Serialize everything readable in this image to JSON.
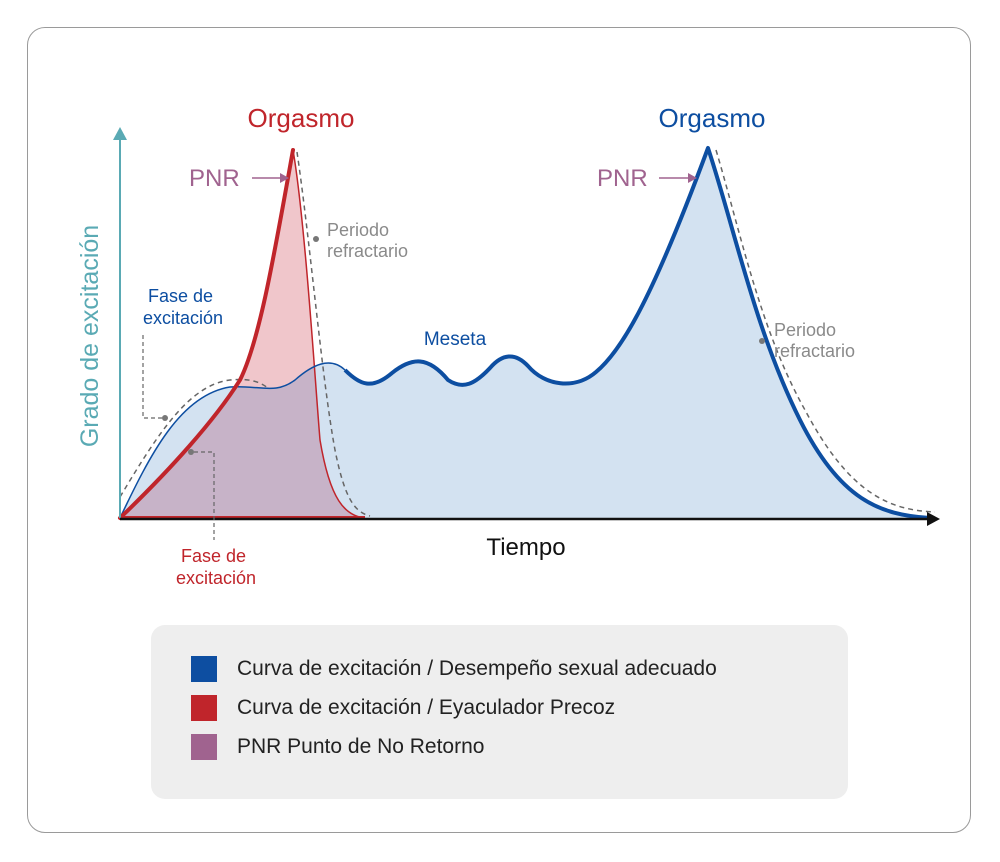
{
  "colors": {
    "teal": "#5aaab4",
    "blue": "#0d4ea1",
    "red": "#c0252b",
    "purple": "#a0638f",
    "gray": "#8a8a8a",
    "blue_fill": "#d3e2f1",
    "red_fill": "#f0c6cb",
    "overlap_fill": "#c7b3c8"
  },
  "axes": {
    "y_label": "Grado de excitación",
    "x_label": "Tiempo"
  },
  "annotations": {
    "orgasm_left": "Orgasmo",
    "orgasm_right": "Orgasmo",
    "pnr_left": "PNR",
    "pnr_right": "PNR",
    "refractory_left": [
      "Periodo",
      "refractario"
    ],
    "refractory_right": [
      "Periodo",
      "refractario"
    ],
    "excitation_blue": [
      "Fase de",
      "excitación"
    ],
    "plateau": "Meseta",
    "excitation_red": [
      "Fase de",
      "excitación"
    ]
  },
  "legend": [
    {
      "label": "Curva de excitación / Desempeño sexual adecuado",
      "color": "#0d4ea1"
    },
    {
      "label": "Curva de excitación / Eyaculador Precoz",
      "color": "#c0252b"
    },
    {
      "label": "PNR Punto de No Retorno",
      "color": "#a0638f"
    }
  ]
}
